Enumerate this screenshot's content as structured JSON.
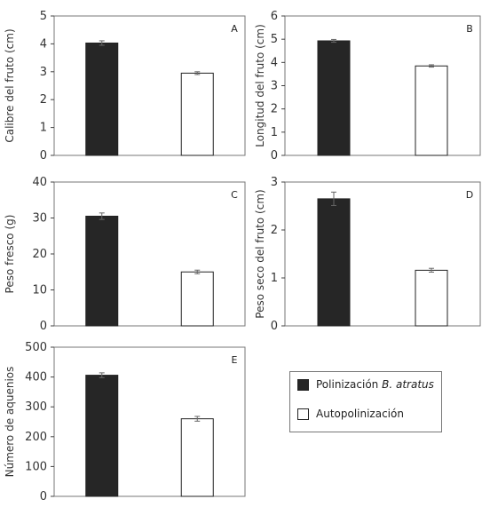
{
  "colors": {
    "pollination": "#262626",
    "self": "#ffffff",
    "axis": "#404040",
    "border": "#777777"
  },
  "legend": {
    "items": [
      {
        "label_prefix": "Polinización ",
        "label_italic": "B. atratus",
        "color": "#262626"
      },
      {
        "label_prefix": "Autopolinización",
        "label_italic": "",
        "color": "#ffffff"
      }
    ]
  },
  "chart_data": [
    {
      "type": "bar",
      "panel": "A",
      "ylabel": "Calibre del fruto (cm)",
      "ylim": [
        0,
        5
      ],
      "yticks": [
        "0",
        "1",
        "2",
        "3",
        "4",
        "5"
      ],
      "series": [
        {
          "name": "Polinización B. atratus",
          "values": [
            4.03
          ],
          "error": [
            0.08
          ]
        },
        {
          "name": "Autopolinización",
          "values": [
            2.95
          ],
          "error": [
            0.05
          ]
        }
      ]
    },
    {
      "type": "bar",
      "panel": "B",
      "ylabel": "Longitud del fruto (cm)",
      "ylim": [
        0,
        6
      ],
      "yticks": [
        "0",
        "1",
        "2",
        "3",
        "4",
        "5",
        "6"
      ],
      "series": [
        {
          "name": "Polinización B. atratus",
          "values": [
            4.93
          ],
          "error": [
            0.06
          ]
        },
        {
          "name": "Autopolinización",
          "values": [
            3.85
          ],
          "error": [
            0.05
          ]
        }
      ]
    },
    {
      "type": "bar",
      "panel": "C",
      "ylabel": "Peso fresco (g)",
      "ylim": [
        0,
        40
      ],
      "yticks": [
        "0",
        "10",
        "20",
        "30",
        "40"
      ],
      "series": [
        {
          "name": "Polinización B. atratus",
          "values": [
            30.5
          ],
          "error": [
            0.9
          ]
        },
        {
          "name": "Autopolinización",
          "values": [
            15.0
          ],
          "error": [
            0.5
          ]
        }
      ]
    },
    {
      "type": "bar",
      "panel": "D",
      "ylabel": "Peso seco del fruto (cm)",
      "ylim": [
        0,
        3
      ],
      "yticks": [
        "0",
        "1",
        "2",
        "3"
      ],
      "series": [
        {
          "name": "Polinización B. atratus",
          "values": [
            2.65
          ],
          "error": [
            0.14
          ]
        },
        {
          "name": "Autopolinización",
          "values": [
            1.16
          ],
          "error": [
            0.04
          ]
        }
      ]
    },
    {
      "type": "bar",
      "panel": "E",
      "ylabel": "Número de aquenios",
      "ylim": [
        0,
        500
      ],
      "yticks": [
        "0",
        "100",
        "200",
        "300",
        "400",
        "500"
      ],
      "series": [
        {
          "name": "Polinización B. atratus",
          "values": [
            406
          ],
          "error": [
            8
          ]
        },
        {
          "name": "Autopolinización",
          "values": [
            260
          ],
          "error": [
            8
          ]
        }
      ]
    }
  ]
}
